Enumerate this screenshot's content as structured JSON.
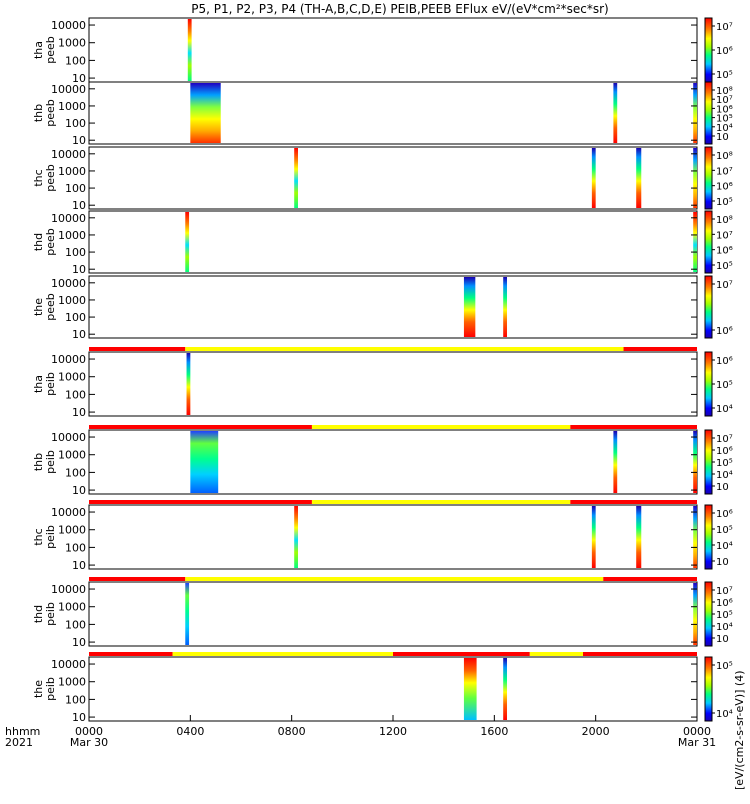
{
  "title": "P5, P1, P2, P3, P4 (TH-A,B,C,D,E) PEIB,PEEB EFlux eV/(eV*cm²*sec*sr)",
  "colorbar_unit": "[eV/(cm2-s-sr-eV)] (4)",
  "chart_data": {
    "type": "heatmap",
    "x_axis": {
      "label_row1": "hhmm",
      "label_row2": "2021",
      "ticks": [
        {
          "x": 0,
          "label": "0000",
          "sub": "Mar 30"
        },
        {
          "x": 4,
          "label": "0400",
          "sub": ""
        },
        {
          "x": 8,
          "label": "0800",
          "sub": ""
        },
        {
          "x": 12,
          "label": "1200",
          "sub": ""
        },
        {
          "x": 16,
          "label": "1600",
          "sub": ""
        },
        {
          "x": 20,
          "label": "2000",
          "sub": ""
        },
        {
          "x": 24,
          "label": "0000",
          "sub": "Mar 31"
        }
      ],
      "range_hours": [
        0,
        24
      ]
    },
    "y_axis": {
      "scale": "log",
      "unit": "eV",
      "ticks": [
        10,
        100,
        1000,
        10000
      ]
    },
    "panels": [
      {
        "probe": "tha",
        "species": "peeb",
        "yticks": [
          10,
          100,
          1000,
          10000
        ],
        "cbar_ticks": [
          "10⁷",
          "10⁶",
          "10⁵"
        ],
        "intervals": [
          {
            "t0": 3.9,
            "t1": 4.05,
            "pattern": "stripe"
          }
        ]
      },
      {
        "probe": "thb",
        "species": "peeb",
        "yticks": [
          10,
          100,
          1000,
          10000
        ],
        "cbar_ticks": [
          "10⁸",
          "10⁷",
          "10⁶",
          "10⁵",
          "10⁴",
          "10⁳"
        ],
        "intervals": [
          {
            "t0": 4.0,
            "t1": 5.2,
            "pattern": "mixed"
          },
          {
            "t0": 20.7,
            "t1": 20.85,
            "pattern": "hot"
          },
          {
            "t0": 23.85,
            "t1": 24.0,
            "pattern": "mixed"
          }
        ]
      },
      {
        "probe": "thc",
        "species": "peeb",
        "yticks": [
          10,
          100,
          1000,
          10000
        ],
        "cbar_ticks": [
          "10⁸",
          "10⁷",
          "10⁶",
          "10⁵"
        ],
        "intervals": [
          {
            "t0": 8.1,
            "t1": 8.25,
            "pattern": "stripe"
          },
          {
            "t0": 19.85,
            "t1": 20.0,
            "pattern": "hot"
          },
          {
            "t0": 21.6,
            "t1": 21.8,
            "pattern": "hot"
          },
          {
            "t0": 23.85,
            "t1": 24.0,
            "pattern": "mixed"
          }
        ]
      },
      {
        "probe": "thd",
        "species": "peeb",
        "yticks": [
          10,
          100,
          1000,
          10000
        ],
        "cbar_ticks": [
          "10⁸",
          "10⁷",
          "10⁶",
          "10⁵"
        ],
        "intervals": [
          {
            "t0": 3.8,
            "t1": 3.95,
            "pattern": "stripe"
          },
          {
            "t0": 23.85,
            "t1": 24.0,
            "pattern": "stripe"
          }
        ]
      },
      {
        "probe": "the",
        "species": "peeb",
        "yticks": [
          10,
          100,
          1000,
          10000
        ],
        "cbar_ticks": [
          "10⁷",
          "10⁶"
        ],
        "intervals": [
          {
            "t0": 14.8,
            "t1": 15.25,
            "pattern": "hot"
          },
          {
            "t0": 16.35,
            "t1": 16.5,
            "pattern": "hot"
          }
        ]
      },
      {
        "probe": "tha",
        "species": "peib",
        "yticks": [
          10,
          100,
          1000,
          10000
        ],
        "cbar_ticks": [
          "10⁶",
          "10⁵",
          "10⁴"
        ],
        "mode_bar": [
          {
            "t0": 0,
            "t1": 3.8,
            "c": "red"
          },
          {
            "t0": 3.8,
            "t1": 21.1,
            "c": "yellow"
          },
          {
            "t0": 21.1,
            "t1": 24,
            "c": "red"
          }
        ],
        "intervals": [
          {
            "t0": 3.85,
            "t1": 4.0,
            "pattern": "hot"
          }
        ]
      },
      {
        "probe": "thb",
        "species": "peib",
        "yticks": [
          10,
          100,
          1000,
          10000
        ],
        "cbar_ticks": [
          "10⁷",
          "10⁶",
          "10⁵",
          "10⁴",
          "10⁳"
        ],
        "mode_bar": [
          {
            "t0": 0,
            "t1": 8.8,
            "c": "red"
          },
          {
            "t0": 8.8,
            "t1": 19.0,
            "c": "yellow"
          },
          {
            "t0": 19.0,
            "t1": 24,
            "c": "red"
          }
        ],
        "intervals": [
          {
            "t0": 4.0,
            "t1": 5.1,
            "pattern": "cool"
          },
          {
            "t0": 20.7,
            "t1": 20.85,
            "pattern": "hot"
          },
          {
            "t0": 23.85,
            "t1": 24.0,
            "pattern": "hot"
          }
        ]
      },
      {
        "probe": "thc",
        "species": "peib",
        "yticks": [
          10,
          100,
          1000,
          10000
        ],
        "cbar_ticks": [
          "10⁶",
          "10⁵",
          "10⁴",
          "10⁳"
        ],
        "mode_bar": [
          {
            "t0": 0,
            "t1": 8.8,
            "c": "red"
          },
          {
            "t0": 8.8,
            "t1": 19.0,
            "c": "yellow"
          },
          {
            "t0": 19.0,
            "t1": 24,
            "c": "red"
          }
        ],
        "intervals": [
          {
            "t0": 8.1,
            "t1": 8.25,
            "pattern": "stripe"
          },
          {
            "t0": 19.85,
            "t1": 20.0,
            "pattern": "hot"
          },
          {
            "t0": 21.6,
            "t1": 21.8,
            "pattern": "hot"
          },
          {
            "t0": 23.85,
            "t1": 24.0,
            "pattern": "mixed"
          }
        ]
      },
      {
        "probe": "thd",
        "species": "peib",
        "yticks": [
          10,
          100,
          1000,
          10000
        ],
        "cbar_ticks": [
          "10⁷",
          "10⁶",
          "10⁵",
          "10⁴",
          "10⁳"
        ],
        "mode_bar": [
          {
            "t0": 0,
            "t1": 3.8,
            "c": "red"
          },
          {
            "t0": 3.8,
            "t1": 20.3,
            "c": "yellow"
          },
          {
            "t0": 20.3,
            "t1": 24,
            "c": "red"
          }
        ],
        "intervals": [
          {
            "t0": 3.8,
            "t1": 3.95,
            "pattern": "cool"
          },
          {
            "t0": 23.85,
            "t1": 24.0,
            "pattern": "mixed"
          }
        ]
      },
      {
        "probe": "the",
        "species": "peib",
        "yticks": [
          10,
          100,
          1000,
          10000
        ],
        "cbar_ticks": [
          "10⁵",
          "10⁴"
        ],
        "mode_bar": [
          {
            "t0": 0,
            "t1": 3.3,
            "c": "red"
          },
          {
            "t0": 3.3,
            "t1": 12.0,
            "c": "yellow"
          },
          {
            "t0": 12.0,
            "t1": 17.4,
            "c": "red"
          },
          {
            "t0": 17.4,
            "t1": 19.5,
            "c": "yellow"
          },
          {
            "t0": 19.5,
            "t1": 24,
            "c": "red"
          }
        ],
        "intervals": [
          {
            "t0": 14.8,
            "t1": 15.3,
            "pattern": "hotcool"
          },
          {
            "t0": 16.35,
            "t1": 16.5,
            "pattern": "hot"
          }
        ]
      }
    ]
  }
}
